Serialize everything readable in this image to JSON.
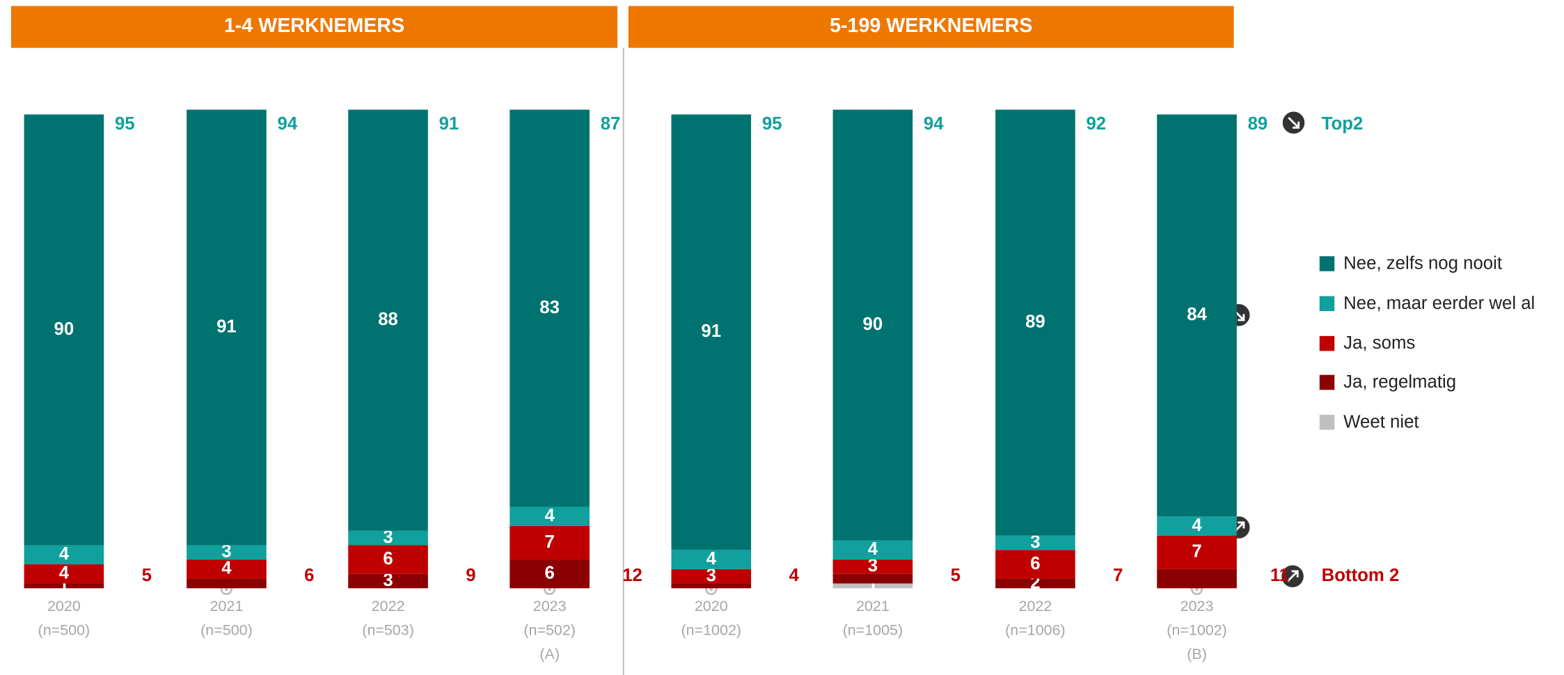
{
  "annotations": {
    "top2": "Top2",
    "bottom2": "Bottom 2"
  },
  "chart_data": [
    {
      "type": "stacked-bar",
      "title": "1-4 WERKNEMERS",
      "categories": [
        "2020",
        "2021",
        "2022",
        "2023"
      ],
      "sample_sizes": [
        "(n=500)",
        "(n=500)",
        "(n=503)",
        "(n=502)"
      ],
      "group_letter": "(A)",
      "ylim": [
        0,
        100
      ],
      "series": [
        {
          "name": "Nee, zelfs nog nooit",
          "color": "#007370",
          "values": [
            90,
            91,
            88,
            83
          ],
          "labeled": [
            true,
            true,
            true,
            true
          ]
        },
        {
          "name": "Nee, maar eerder wel al",
          "color": "#10a09d",
          "values": [
            4,
            3,
            3,
            4
          ],
          "labeled": [
            true,
            true,
            true,
            true
          ]
        },
        {
          "name": "Ja, soms",
          "color": "#c00000",
          "values": [
            4,
            4,
            6,
            7
          ],
          "labeled": [
            true,
            true,
            true,
            true
          ]
        },
        {
          "name": "Ja, regelmatig",
          "color": "#8b0000",
          "values": [
            1,
            2,
            3,
            6
          ],
          "labeled": [
            true,
            false,
            true,
            true
          ]
        },
        {
          "name": "Weet niet",
          "color": "#bfbfbf",
          "values": [
            0,
            0,
            0,
            0
          ],
          "labeled": [
            false,
            true,
            false,
            true
          ]
        }
      ],
      "top2": [
        95,
        94,
        91,
        87
      ],
      "bottom2": [
        5,
        6,
        9,
        12
      ]
    },
    {
      "type": "stacked-bar",
      "title": "5-199 WERKNEMERS",
      "categories": [
        "2020",
        "2021",
        "2022",
        "2023"
      ],
      "sample_sizes": [
        "(n=1002)",
        "(n=1005)",
        "(n=1006)",
        "(n=1002)"
      ],
      "group_letter": "(B)",
      "ylim": [
        0,
        100
      ],
      "series": [
        {
          "name": "Nee, zelfs nog nooit",
          "color": "#007370",
          "values": [
            91,
            90,
            89,
            84
          ],
          "labeled": [
            true,
            true,
            true,
            true
          ]
        },
        {
          "name": "Nee, maar eerder wel al",
          "color": "#10a09d",
          "values": [
            4,
            4,
            3,
            4
          ],
          "labeled": [
            true,
            true,
            true,
            true
          ]
        },
        {
          "name": "Ja, soms",
          "color": "#c00000",
          "values": [
            3,
            3,
            6,
            7
          ],
          "labeled": [
            true,
            true,
            true,
            true
          ]
        },
        {
          "name": "Ja, regelmatig",
          "color": "#8b0000",
          "values": [
            1,
            2,
            2,
            4
          ],
          "labeled": [
            false,
            false,
            true,
            false
          ]
        },
        {
          "name": "Weet niet",
          "color": "#bfbfbf",
          "values": [
            0,
            1,
            0,
            0
          ],
          "labeled": [
            true,
            true,
            false,
            true
          ]
        }
      ],
      "top2": [
        95,
        94,
        92,
        89
      ],
      "bottom2": [
        4,
        5,
        7,
        11
      ]
    }
  ]
}
